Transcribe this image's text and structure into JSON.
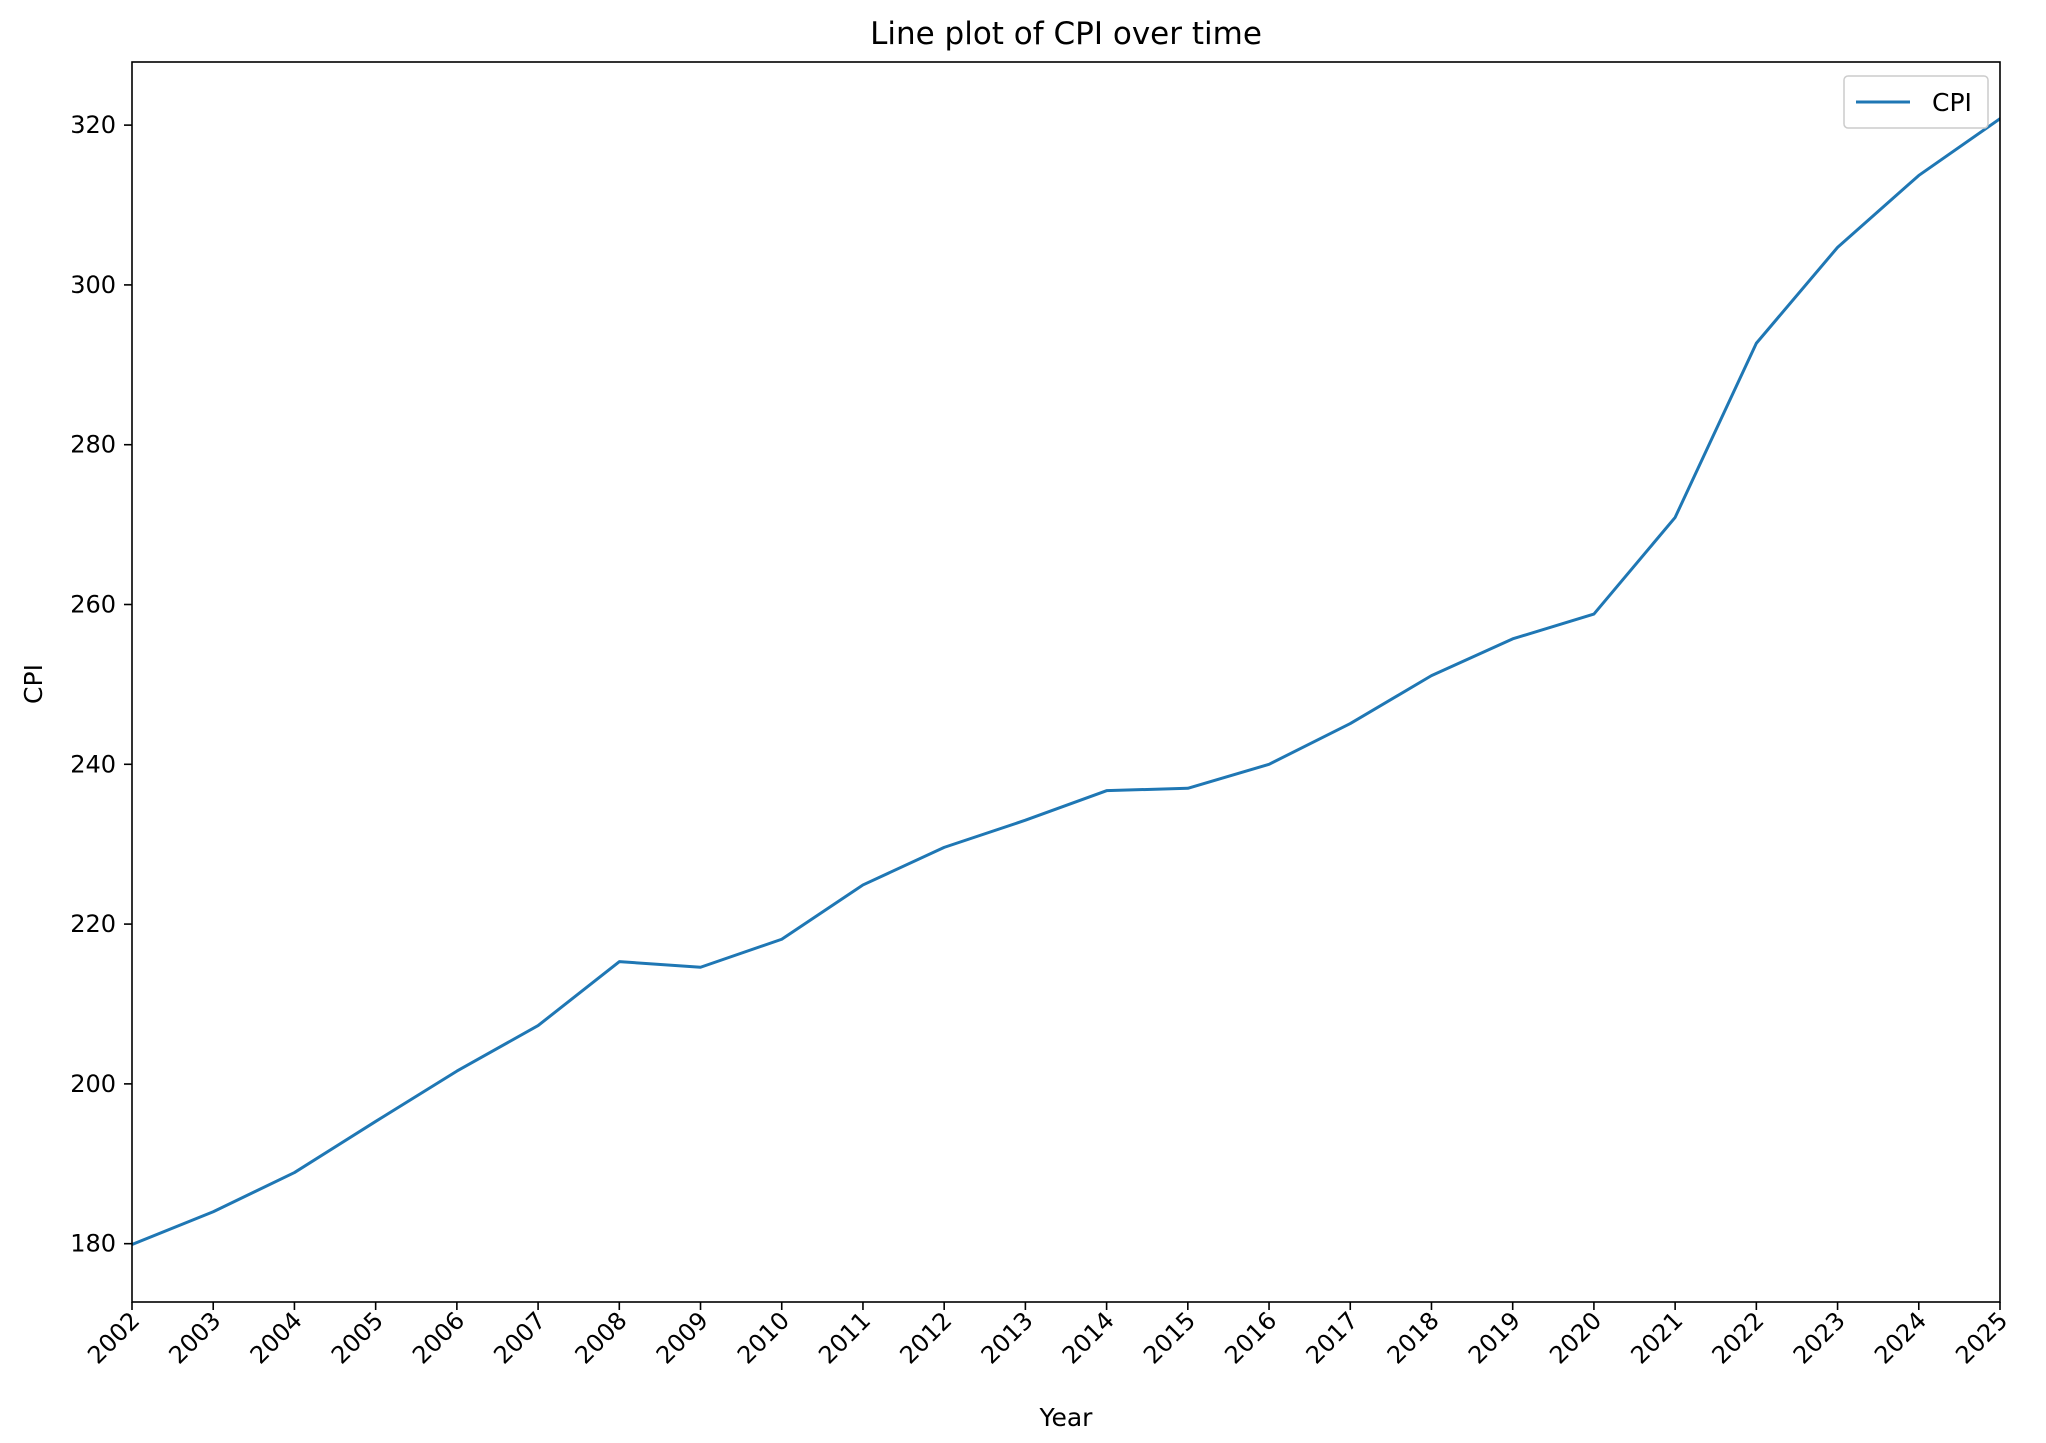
{
  "chart_data": {
    "type": "line",
    "title": "Line plot of CPI over time",
    "xlabel": "Year",
    "ylabel": "CPI",
    "x": [
      "2002",
      "2003",
      "2004",
      "2005",
      "2006",
      "2007",
      "2008",
      "2009",
      "2010",
      "2011",
      "2012",
      "2013",
      "2014",
      "2015",
      "2016",
      "2017",
      "2018",
      "2019",
      "2020",
      "2021",
      "2022",
      "2023",
      "2024",
      "2025"
    ],
    "series": [
      {
        "name": "CPI",
        "color": "#1f77b4",
        "values": [
          179.9,
          184.0,
          188.9,
          195.3,
          201.6,
          207.3,
          215.3,
          214.6,
          218.1,
          224.9,
          229.6,
          233.0,
          236.7,
          237.0,
          240.0,
          245.1,
          251.1,
          255.7,
          258.8,
          270.9,
          292.7,
          304.7,
          313.7,
          320.8
        ]
      }
    ],
    "xlim": [
      "2002",
      "2025"
    ],
    "ylim": [
      172.7,
      327.9
    ],
    "yticks": [
      180,
      200,
      220,
      240,
      260,
      280,
      300,
      320
    ],
    "grid": false,
    "legend": "top-right"
  }
}
